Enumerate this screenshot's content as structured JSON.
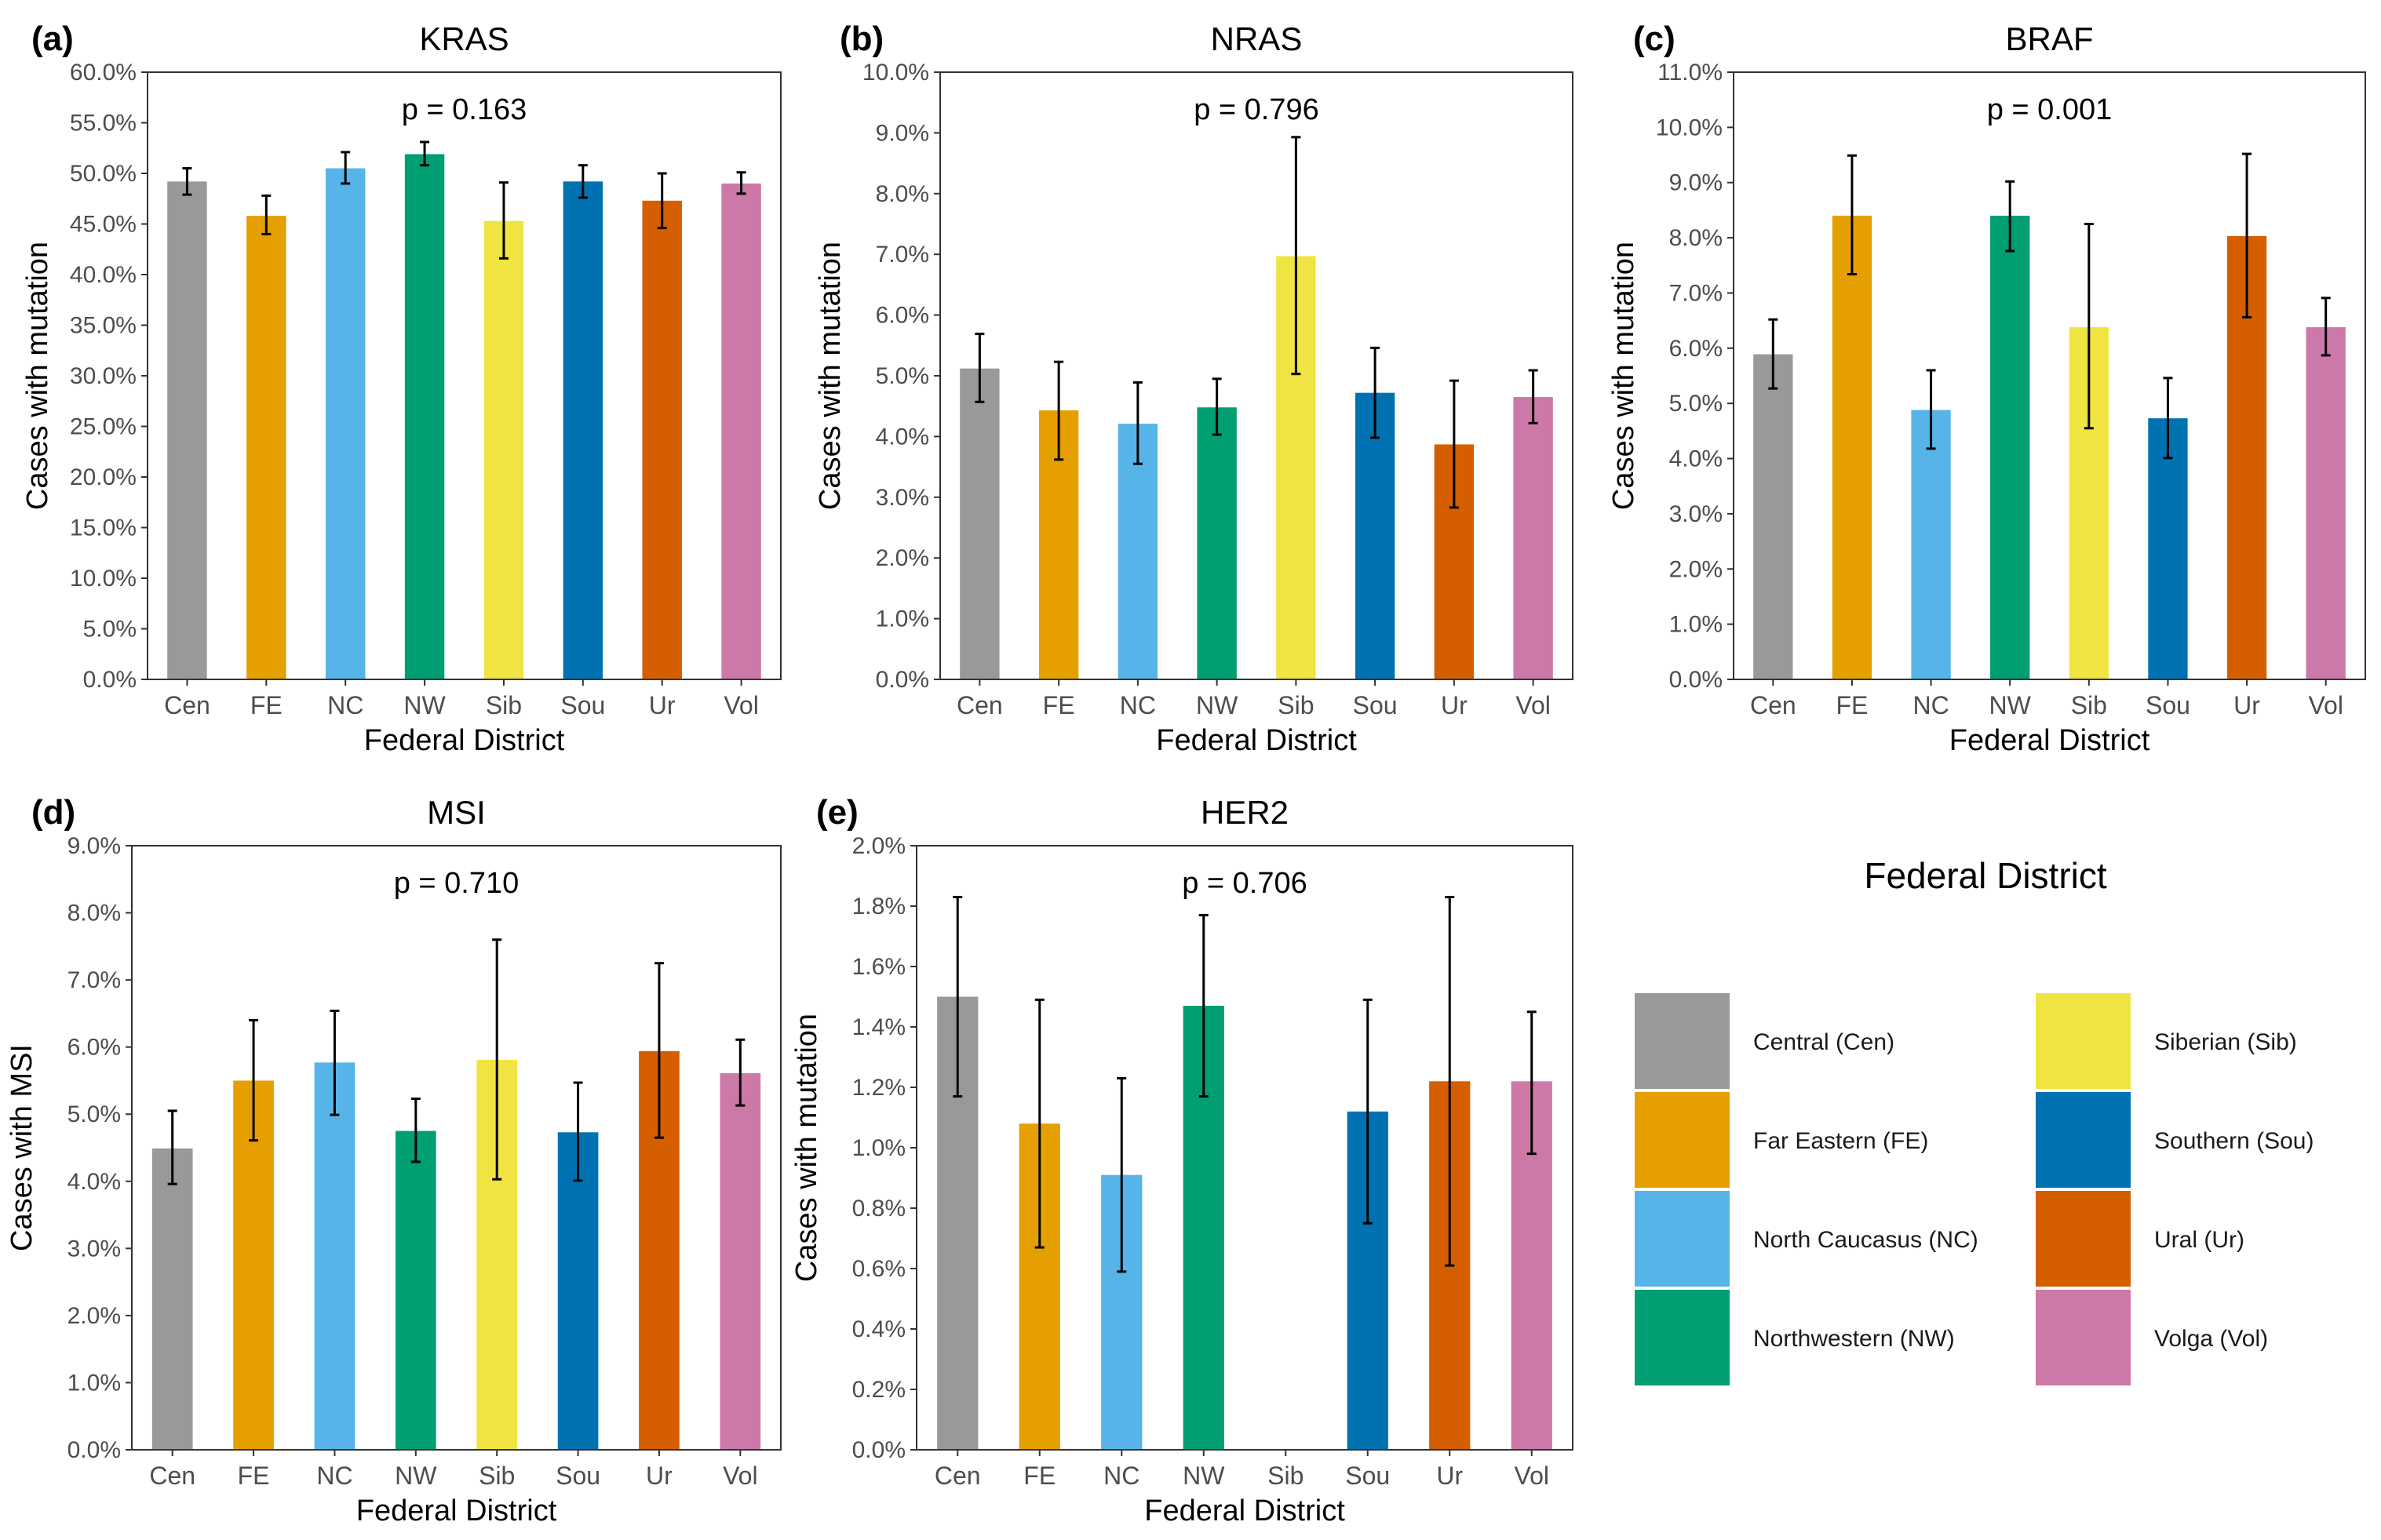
{
  "chart_data": [
    {
      "panel": "(a)",
      "type": "bar",
      "title": "KRAS",
      "annotation": "p = 0.163",
      "xlabel": "Federal District",
      "ylabel": "Cases with mutation",
      "categories": [
        "Cen",
        "FE",
        "NC",
        "NW",
        "Sib",
        "Sou",
        "Ur",
        "Vol"
      ],
      "values": [
        49.2,
        45.8,
        50.5,
        51.9,
        45.3,
        49.2,
        47.3,
        49.0
      ],
      "error_low": [
        47.9,
        44.0,
        49.0,
        50.8,
        41.6,
        47.6,
        44.6,
        48.0
      ],
      "error_high": [
        50.5,
        47.8,
        52.1,
        53.1,
        49.1,
        50.8,
        50.0,
        50.1
      ],
      "ylim": [
        0,
        60
      ],
      "yticks": [
        "0.0%",
        "5.0%",
        "10.0%",
        "15.0%",
        "20.0%",
        "25.0%",
        "30.0%",
        "35.0%",
        "40.0%",
        "45.0%",
        "50.0%",
        "55.0%",
        "60.0%"
      ]
    },
    {
      "panel": "(b)",
      "type": "bar",
      "title": "NRAS",
      "annotation": "p = 0.796",
      "xlabel": "Federal District",
      "ylabel": "Cases with mutation",
      "categories": [
        "Cen",
        "FE",
        "NC",
        "NW",
        "Sib",
        "Sou",
        "Ur",
        "Vol"
      ],
      "values": [
        5.12,
        4.43,
        4.21,
        4.48,
        6.97,
        4.72,
        3.87,
        4.65
      ],
      "error_low": [
        4.57,
        3.62,
        3.55,
        4.03,
        5.03,
        3.98,
        2.83,
        4.22
      ],
      "error_high": [
        5.69,
        5.23,
        4.89,
        4.95,
        8.93,
        5.46,
        4.92,
        5.09
      ],
      "ylim": [
        0,
        10
      ],
      "yticks": [
        "0.0%",
        "1.0%",
        "2.0%",
        "3.0%",
        "4.0%",
        "5.0%",
        "6.0%",
        "7.0%",
        "8.0%",
        "9.0%",
        "10.0%"
      ]
    },
    {
      "panel": "(c)",
      "type": "bar",
      "title": "BRAF",
      "annotation": "p = 0.001",
      "xlabel": "Federal District",
      "ylabel": "Cases with mutation",
      "categories": [
        "Cen",
        "FE",
        "NC",
        "NW",
        "Sib",
        "Sou",
        "Ur",
        "Vol"
      ],
      "values": [
        5.89,
        8.4,
        4.88,
        8.4,
        6.38,
        4.73,
        8.03,
        6.38
      ],
      "error_low": [
        5.27,
        7.34,
        4.18,
        7.76,
        4.55,
        4.01,
        6.56,
        5.87
      ],
      "error_high": [
        6.52,
        9.49,
        5.6,
        9.02,
        8.25,
        5.46,
        9.52,
        6.91
      ],
      "ylim": [
        0,
        11
      ],
      "yticks": [
        "0.0%",
        "1.0%",
        "2.0%",
        "3.0%",
        "4.0%",
        "5.0%",
        "6.0%",
        "7.0%",
        "8.0%",
        "9.0%",
        "10.0%",
        "11.0%"
      ]
    },
    {
      "panel": "(d)",
      "type": "bar",
      "title": "MSI",
      "annotation": "p = 0.710",
      "xlabel": "Federal District",
      "ylabel": "Cases with MSI",
      "categories": [
        "Cen",
        "FE",
        "NC",
        "NW",
        "Sib",
        "Sou",
        "Ur",
        "Vol"
      ],
      "values": [
        4.49,
        5.5,
        5.77,
        4.75,
        5.81,
        4.73,
        5.94,
        5.61
      ],
      "error_low": [
        3.96,
        4.61,
        4.99,
        4.29,
        4.03,
        4.01,
        4.65,
        5.13
      ],
      "error_high": [
        5.05,
        6.4,
        6.54,
        5.23,
        7.6,
        5.47,
        7.25,
        6.11
      ],
      "ylim": [
        0,
        9
      ],
      "yticks": [
        "0.0%",
        "1.0%",
        "2.0%",
        "3.0%",
        "4.0%",
        "5.0%",
        "6.0%",
        "7.0%",
        "8.0%",
        "9.0%"
      ]
    },
    {
      "panel": "(e)",
      "type": "bar",
      "title": "HER2",
      "annotation": "p = 0.706",
      "xlabel": "Federal District",
      "ylabel": "Cases with mutation",
      "categories": [
        "Cen",
        "FE",
        "NC",
        "NW",
        "Sib",
        "Sou",
        "Ur",
        "Vol"
      ],
      "values": [
        1.5,
        1.08,
        0.91,
        1.47,
        0.0,
        1.12,
        1.22,
        1.22
      ],
      "error_low": [
        1.17,
        0.67,
        0.59,
        1.17,
        null,
        0.75,
        0.61,
        0.98
      ],
      "error_high": [
        1.83,
        1.49,
        1.23,
        1.77,
        null,
        1.49,
        1.83,
        1.45
      ],
      "ylim": [
        0,
        2
      ],
      "yticks": [
        "0.0%",
        "0.2%",
        "0.4%",
        "0.6%",
        "0.8%",
        "1.0%",
        "1.2%",
        "1.4%",
        "1.6%",
        "1.8%",
        "2.0%"
      ]
    }
  ],
  "colors": {
    "Cen": "#999999",
    "FE": "#E69F00",
    "NC": "#56B4E9",
    "NW": "#009E73",
    "Sib": "#F0E442",
    "Sou": "#0072B2",
    "Ur": "#D55E00",
    "Vol": "#CC79A7"
  },
  "legend": {
    "title": "Federal District",
    "items": [
      {
        "key": "Cen",
        "label": "Central (Cen)"
      },
      {
        "key": "FE",
        "label": "Far Eastern (FE)"
      },
      {
        "key": "NC",
        "label": "North Caucasus (NC)"
      },
      {
        "key": "NW",
        "label": "Northwestern (NW)"
      },
      {
        "key": "Sib",
        "label": "Siberian (Sib)"
      },
      {
        "key": "Sou",
        "label": "Southern (Sou)"
      },
      {
        "key": "Ur",
        "label": "Ural (Ur)"
      },
      {
        "key": "Vol",
        "label": "Volga (Vol)"
      }
    ]
  }
}
